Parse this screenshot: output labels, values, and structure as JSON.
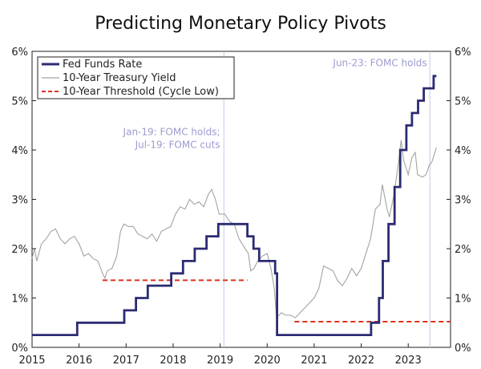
{
  "chart_data": {
    "type": "line",
    "title": "Predicting Monetary Policy Pivots",
    "xlim": [
      2015,
      2023.9
    ],
    "ylim": [
      0,
      6
    ],
    "x_ticks": [
      "2015",
      "2016",
      "2017",
      "2018",
      "2019",
      "2020",
      "2021",
      "2022",
      "2023"
    ],
    "y_ticks_left": [
      "0%",
      "1%",
      "2%",
      "3%",
      "4%",
      "5%",
      "6%"
    ],
    "y_ticks_right": [
      "0%",
      "1%",
      "2%",
      "3%",
      "4%",
      "5%",
      "6%"
    ],
    "legend_position": "top-left",
    "colors": {
      "fed_funds": "#2b2b73",
      "treasury": "#a3a3a3",
      "threshold": "#e0301e",
      "vline": "#c8c8e6",
      "annotation": "#9b9bd0"
    },
    "series": [
      {
        "name": "Fed Funds Rate",
        "style": "step",
        "points": [
          [
            2015.0,
            0.25
          ],
          [
            2015.96,
            0.5
          ],
          [
            2016.96,
            0.75
          ],
          [
            2017.21,
            1.0
          ],
          [
            2017.46,
            1.25
          ],
          [
            2017.96,
            1.5
          ],
          [
            2018.21,
            1.75
          ],
          [
            2018.46,
            2.0
          ],
          [
            2018.71,
            2.25
          ],
          [
            2018.96,
            2.5
          ],
          [
            2019.58,
            2.25
          ],
          [
            2019.71,
            2.0
          ],
          [
            2019.83,
            1.75
          ],
          [
            2020.17,
            1.5
          ],
          [
            2020.21,
            0.25
          ],
          [
            2022.21,
            0.5
          ],
          [
            2022.38,
            1.0
          ],
          [
            2022.46,
            1.75
          ],
          [
            2022.58,
            2.5
          ],
          [
            2022.71,
            3.25
          ],
          [
            2022.83,
            4.0
          ],
          [
            2022.96,
            4.5
          ],
          [
            2023.08,
            4.75
          ],
          [
            2023.21,
            5.0
          ],
          [
            2023.33,
            5.25
          ],
          [
            2023.54,
            5.5
          ],
          [
            2023.6,
            5.5
          ]
        ]
      },
      {
        "name": "10-Year Treasury Yield",
        "style": "line",
        "points": [
          [
            2015.0,
            1.8
          ],
          [
            2015.05,
            2.0
          ],
          [
            2015.1,
            1.75
          ],
          [
            2015.2,
            2.1
          ],
          [
            2015.3,
            2.2
          ],
          [
            2015.4,
            2.35
          ],
          [
            2015.5,
            2.4
          ],
          [
            2015.6,
            2.2
          ],
          [
            2015.7,
            2.1
          ],
          [
            2015.8,
            2.2
          ],
          [
            2015.9,
            2.25
          ],
          [
            2016.0,
            2.1
          ],
          [
            2016.1,
            1.85
          ],
          [
            2016.2,
            1.9
          ],
          [
            2016.3,
            1.8
          ],
          [
            2016.4,
            1.75
          ],
          [
            2016.5,
            1.5
          ],
          [
            2016.55,
            1.4
          ],
          [
            2016.6,
            1.55
          ],
          [
            2016.7,
            1.6
          ],
          [
            2016.8,
            1.85
          ],
          [
            2016.88,
            2.35
          ],
          [
            2016.95,
            2.5
          ],
          [
            2017.05,
            2.45
          ],
          [
            2017.15,
            2.45
          ],
          [
            2017.25,
            2.3
          ],
          [
            2017.35,
            2.25
          ],
          [
            2017.45,
            2.2
          ],
          [
            2017.55,
            2.3
          ],
          [
            2017.65,
            2.15
          ],
          [
            2017.75,
            2.35
          ],
          [
            2017.85,
            2.4
          ],
          [
            2017.95,
            2.45
          ],
          [
            2018.05,
            2.7
          ],
          [
            2018.15,
            2.85
          ],
          [
            2018.25,
            2.8
          ],
          [
            2018.35,
            3.0
          ],
          [
            2018.45,
            2.9
          ],
          [
            2018.55,
            2.95
          ],
          [
            2018.65,
            2.85
          ],
          [
            2018.75,
            3.1
          ],
          [
            2018.82,
            3.2
          ],
          [
            2018.9,
            3.0
          ],
          [
            2018.98,
            2.7
          ],
          [
            2019.1,
            2.7
          ],
          [
            2019.2,
            2.55
          ],
          [
            2019.3,
            2.5
          ],
          [
            2019.4,
            2.2
          ],
          [
            2019.5,
            2.05
          ],
          [
            2019.6,
            1.9
          ],
          [
            2019.65,
            1.55
          ],
          [
            2019.72,
            1.6
          ],
          [
            2019.8,
            1.75
          ],
          [
            2019.9,
            1.85
          ],
          [
            2020.0,
            1.9
          ],
          [
            2020.08,
            1.6
          ],
          [
            2020.15,
            1.2
          ],
          [
            2020.2,
            0.6
          ],
          [
            2020.3,
            0.7
          ],
          [
            2020.4,
            0.65
          ],
          [
            2020.5,
            0.65
          ],
          [
            2020.6,
            0.6
          ],
          [
            2020.7,
            0.7
          ],
          [
            2020.8,
            0.8
          ],
          [
            2020.9,
            0.9
          ],
          [
            2021.0,
            1.0
          ],
          [
            2021.1,
            1.2
          ],
          [
            2021.2,
            1.65
          ],
          [
            2021.3,
            1.6
          ],
          [
            2021.4,
            1.55
          ],
          [
            2021.5,
            1.35
          ],
          [
            2021.6,
            1.25
          ],
          [
            2021.7,
            1.4
          ],
          [
            2021.8,
            1.6
          ],
          [
            2021.9,
            1.45
          ],
          [
            2022.0,
            1.6
          ],
          [
            2022.1,
            1.9
          ],
          [
            2022.2,
            2.2
          ],
          [
            2022.3,
            2.8
          ],
          [
            2022.4,
            2.9
          ],
          [
            2022.45,
            3.3
          ],
          [
            2022.55,
            2.8
          ],
          [
            2022.6,
            2.65
          ],
          [
            2022.7,
            3.1
          ],
          [
            2022.8,
            3.8
          ],
          [
            2022.85,
            4.2
          ],
          [
            2022.9,
            3.8
          ],
          [
            2022.95,
            3.65
          ],
          [
            2023.0,
            3.5
          ],
          [
            2023.08,
            3.85
          ],
          [
            2023.15,
            3.95
          ],
          [
            2023.2,
            3.5
          ],
          [
            2023.3,
            3.45
          ],
          [
            2023.38,
            3.5
          ],
          [
            2023.45,
            3.7
          ],
          [
            2023.5,
            3.75
          ],
          [
            2023.55,
            3.9
          ],
          [
            2023.6,
            4.05
          ]
        ]
      },
      {
        "name": "10-Year Threshold (Cycle Low)",
        "style": "dashed",
        "segments": [
          {
            "x": [
              2016.5,
              2019.58
            ],
            "y": 1.36
          },
          {
            "x": [
              2020.58,
              2023.9
            ],
            "y": 0.52
          }
        ]
      }
    ],
    "vlines": [
      2019.08,
      2023.46
    ],
    "annotations": [
      {
        "lines": [
          "Jan-19: FOMC holds;",
          "Jul-19: FOMC cuts"
        ],
        "x": 2019.0,
        "y": 4.3,
        "align": "end"
      },
      {
        "lines": [
          "Jun-23: FOMC holds"
        ],
        "x": 2023.4,
        "y": 5.7,
        "align": "end"
      }
    ]
  }
}
